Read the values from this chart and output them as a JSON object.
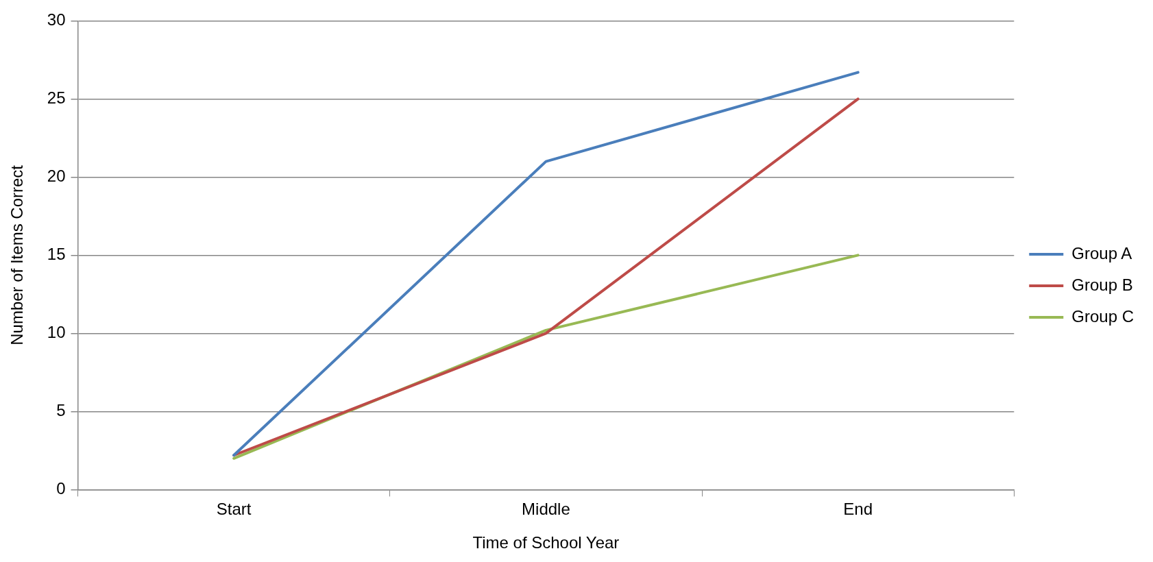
{
  "chart_data": {
    "type": "line",
    "xlabel": "Time of School Year",
    "ylabel": "Number of Items Correct",
    "categories": [
      "Start",
      "Middle",
      "End"
    ],
    "series": [
      {
        "name": "Group A",
        "color": "#4a7ebb",
        "values": [
          2.2,
          21,
          26.7
        ]
      },
      {
        "name": "Group B",
        "color": "#be4b48",
        "values": [
          2.2,
          10,
          25
        ]
      },
      {
        "name": "Group C",
        "color": "#98b954",
        "values": [
          2,
          10.2,
          15
        ]
      }
    ],
    "ylim": [
      0,
      30
    ],
    "yticks": [
      0,
      5,
      10,
      15,
      20,
      25,
      30
    ],
    "grid": "y",
    "legend": "right",
    "marker": "none",
    "line_style": "solid"
  }
}
